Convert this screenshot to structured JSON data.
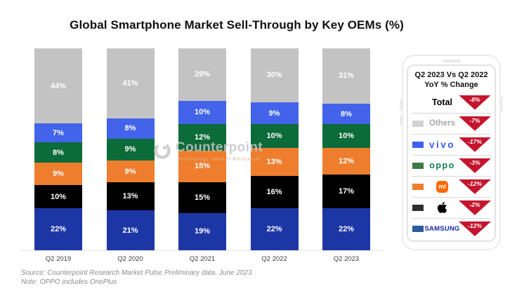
{
  "title": "Global Smartphone Market Sell-Through by Key OEMs (%)",
  "chart_data": {
    "type": "bar",
    "stacked": true,
    "title": "Global Smartphone Market Sell-Through by Key OEMs (%)",
    "categories": [
      "Q2 2019",
      "Q2 2020",
      "Q2 2021",
      "Q2 2022",
      "Q2 2023"
    ],
    "series": [
      {
        "name": "Samsung",
        "color": "#1d36a6",
        "values": [
          22,
          21,
          19,
          22,
          22
        ]
      },
      {
        "name": "Apple",
        "color": "#010101",
        "values": [
          10,
          13,
          15,
          16,
          17
        ]
      },
      {
        "name": "Xiaomi",
        "color": "#ee7d2d",
        "values": [
          9,
          9,
          15,
          13,
          12
        ]
      },
      {
        "name": "OPPO",
        "color": "#0b6b39",
        "values": [
          8,
          9,
          12,
          10,
          10
        ]
      },
      {
        "name": "vivo",
        "color": "#4263ea",
        "values": [
          7,
          8,
          10,
          9,
          8
        ]
      },
      {
        "name": "Others",
        "color": "#c3c3c3",
        "values": [
          44,
          41,
          29,
          30,
          31
        ]
      }
    ],
    "value_suffix": "%",
    "ylim": [
      0,
      100
    ],
    "grid": false,
    "legend_position": "right-panel"
  },
  "watermark": {
    "name": "Counterpoint",
    "subtitle": "Technology Market Research"
  },
  "legend_panel": {
    "header_line1": "Q2 2023 Vs Q2 2022",
    "header_line2": "YoY % Change",
    "rows": [
      {
        "label": "Total",
        "yoy": "-8%"
      },
      {
        "label": "Others",
        "yoy": "-7%",
        "swatch": "#d2d2d2",
        "label_color": "#a9a9a9"
      },
      {
        "label": "vivo",
        "yoy": "-17%",
        "swatch": "#3e5ff0",
        "label_color": "#3c5bf0"
      },
      {
        "label": "oppo",
        "yoy": "-3%",
        "swatch": "#3d7a46",
        "label_color": "#0f7d4c"
      },
      {
        "label": "Xiaomi",
        "yoy": "-12%",
        "swatch": "#ee7d2d",
        "logo_text": "mi",
        "logo_bg": "#ff6900"
      },
      {
        "label": "Apple",
        "yoy": "-2%",
        "swatch": "#2f2f2f"
      },
      {
        "label": "SAMSUNG",
        "yoy": "-12%",
        "swatch": "#2e5d9e",
        "label_color": "#1428a0"
      }
    ]
  },
  "colors": {
    "decline_red": "#c5152e"
  },
  "footer": {
    "source": "Source: Counterpoint Research Market Pulse Preliminary data, June 2023",
    "note": "Note: OPPO includes OnePlus"
  }
}
